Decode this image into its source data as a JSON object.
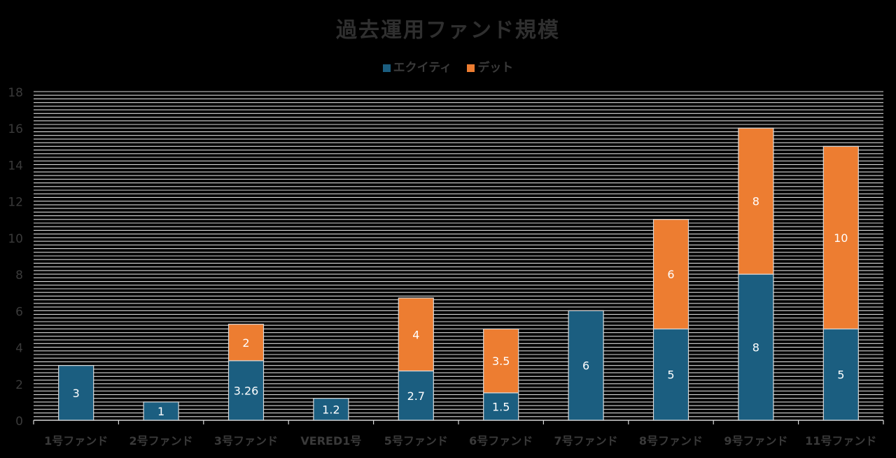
{
  "chart_data": {
    "type": "bar",
    "stacked": true,
    "title": "過去運用ファンド規模",
    "categories": [
      "1号ファンド",
      "2号ファンド",
      "3号ファンド",
      "VERED1号",
      "5号ファンド",
      "6号ファンド",
      "7号ファンド",
      "8号ファンド",
      "9号ファンド",
      "11号ファンド"
    ],
    "series": [
      {
        "name": "エクイティ",
        "color": "#1b5e80",
        "values": [
          3,
          1,
          3.26,
          1.2,
          2.7,
          1.5,
          6,
          5,
          8,
          5
        ],
        "labels": [
          "3",
          "1",
          "3.26",
          "1.2",
          "2.7",
          "1.5",
          "6",
          "5",
          "8",
          "5"
        ]
      },
      {
        "name": "デット",
        "color": "#ed7d31",
        "values": [
          0,
          0,
          2,
          0,
          4,
          3.5,
          0,
          6,
          8,
          10
        ],
        "labels": [
          "",
          "",
          "2",
          "",
          "4",
          "3.5",
          "",
          "6",
          "8",
          "10"
        ]
      }
    ],
    "ylim": [
      0,
      18
    ],
    "yticks": [
      0,
      2,
      4,
      6,
      8,
      10,
      12,
      14,
      16,
      18
    ],
    "grid": true,
    "legend_position": "top-center"
  }
}
